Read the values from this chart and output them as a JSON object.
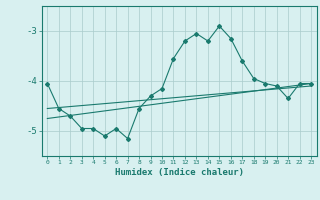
{
  "title": "",
  "xlabel": "Humidex (Indice chaleur)",
  "x_values": [
    0,
    1,
    2,
    3,
    4,
    5,
    6,
    7,
    8,
    9,
    10,
    11,
    12,
    13,
    14,
    15,
    16,
    17,
    18,
    19,
    20,
    21,
    22,
    23
  ],
  "main_line": [
    -4.05,
    -4.55,
    -4.7,
    -4.95,
    -4.95,
    -5.1,
    -4.95,
    -5.15,
    -4.55,
    -4.3,
    -4.15,
    -3.55,
    -3.2,
    -3.05,
    -3.2,
    -2.9,
    -3.15,
    -3.6,
    -3.95,
    -4.05,
    -4.1,
    -4.35,
    -4.05,
    -4.05
  ],
  "trend_line1_x": [
    0,
    23
  ],
  "trend_line1_y": [
    -4.55,
    -4.1
  ],
  "trend_line2_x": [
    0,
    23
  ],
  "trend_line2_y": [
    -4.75,
    -4.05
  ],
  "line_color": "#1a7a6e",
  "bg_color": "#d8f0f0",
  "grid_color": "#aacccc",
  "xlim": [
    -0.5,
    23.5
  ],
  "ylim": [
    -5.5,
    -2.5
  ],
  "yticks": [
    -5,
    -4,
    -3
  ],
  "xticks": [
    0,
    1,
    2,
    3,
    4,
    5,
    6,
    7,
    8,
    9,
    10,
    11,
    12,
    13,
    14,
    15,
    16,
    17,
    18,
    19,
    20,
    21,
    22,
    23
  ]
}
